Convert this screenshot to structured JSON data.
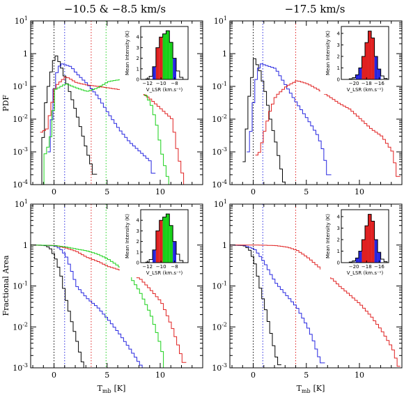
{
  "figure": {
    "col_titles": [
      "−10.5 & −8.5 km/s",
      "−17.5 km/s"
    ],
    "row_ylabels": [
      "PDF",
      "Fractional Area"
    ],
    "xlabel": "T_mb [K]",
    "xlabel_main": "T",
    "xlabel_sub": "mb",
    "xlabel_unit": "[K]",
    "inset_ylabel": "Mean Intensity (K)",
    "inset_xlabel": "V_LSR (km.s⁻¹)",
    "colors": {
      "black": "#000000",
      "blue": "#2626e0",
      "red": "#e02020",
      "green": "#19d119"
    }
  },
  "chart_data": [
    {
      "id": "pdf-left",
      "type": "line",
      "ylabel": "PDF",
      "title": "−10.5 & −8.5 km/s",
      "ylog": true,
      "xlim": [
        -2.2,
        14
      ],
      "ylim": [
        0.0001,
        10
      ],
      "xticks": [
        0,
        5,
        10
      ],
      "yticks": [
        "10^-4",
        "10^-3",
        "10^-2",
        "10^-1",
        "1",
        "10^1"
      ],
      "thresholds": [
        {
          "color": "black",
          "x": 0.0
        },
        {
          "color": "blue",
          "x": 1.0
        },
        {
          "color": "red",
          "x": 3.5
        },
        {
          "color": "green",
          "x": 4.9
        }
      ],
      "series": [
        {
          "color": "black",
          "points": [
            [
              -1.4,
              0.0001
            ],
            [
              -1,
              0.02
            ],
            [
              -0.5,
              0.2
            ],
            [
              0,
              1.0
            ],
            [
              0.5,
              0.45
            ],
            [
              1,
              0.15
            ],
            [
              1.5,
              0.05
            ],
            [
              2,
              0.015
            ],
            [
              2.5,
              0.004
            ],
            [
              3,
              0.001
            ],
            [
              3.5,
              0.0003
            ],
            [
              3.8,
              0.0001
            ]
          ]
        },
        {
          "color": "blue",
          "points": [
            [
              -0.6,
              0.001
            ],
            [
              -0.3,
              0.015
            ],
            [
              0,
              0.2
            ],
            [
              0.5,
              0.5
            ],
            [
              1,
              0.45
            ],
            [
              1.5,
              0.4
            ],
            [
              2,
              0.25
            ],
            [
              3,
              0.12
            ],
            [
              4,
              0.05
            ],
            [
              5,
              0.015
            ],
            [
              6,
              0.005
            ],
            [
              7,
              0.002
            ],
            [
              8,
              0.001
            ],
            [
              9,
              0.0005
            ],
            [
              9.3,
              0.0001
            ]
          ]
        },
        {
          "color": "red",
          "points": [
            [
              -1.3,
              0.004
            ],
            [
              -0.8,
              0.005
            ],
            [
              0,
              0.1
            ],
            [
              1,
              0.2
            ],
            [
              2,
              0.13
            ],
            [
              3,
              0.11
            ],
            [
              4,
              0.1
            ],
            [
              5,
              0.09
            ],
            [
              6,
              0.08
            ],
            [
              7,
              0.08
            ],
            [
              8,
              0.07
            ],
            [
              9,
              0.04
            ],
            [
              10,
              0.02
            ],
            [
              11,
              0.01
            ],
            [
              11.5,
              0.001
            ],
            [
              12.2,
              0.0001
            ]
          ]
        },
        {
          "color": "green",
          "points": [
            [
              -1.2,
              0.0001
            ],
            [
              -1,
              0.0008
            ],
            [
              -0.5,
              0.002
            ],
            [
              0,
              0.08
            ],
            [
              1,
              0.12
            ],
            [
              2,
              0.09
            ],
            [
              3,
              0.07
            ],
            [
              4,
              0.09
            ],
            [
              5,
              0.14
            ],
            [
              6,
              0.16
            ],
            [
              7,
              0.13
            ],
            [
              8,
              0.1
            ],
            [
              9,
              0.03
            ],
            [
              9.5,
              0.008
            ],
            [
              10,
              0.001
            ],
            [
              10.5,
              0.0002
            ],
            [
              10.8,
              0.0001
            ]
          ]
        }
      ]
    },
    {
      "id": "pdf-right",
      "type": "line",
      "ylabel": "",
      "title": "−17.5 km/s",
      "ylog": true,
      "xlim": [
        -2.2,
        14
      ],
      "ylim": [
        0.0001,
        10
      ],
      "xticks": [
        0,
        5,
        10
      ],
      "yticks": [
        "10^-4",
        "10^-3",
        "10^-2",
        "10^-1",
        "1",
        "10^1"
      ],
      "thresholds": [
        {
          "color": "black",
          "x": 0.0
        },
        {
          "color": "blue",
          "x": 0.9
        },
        {
          "color": "red",
          "x": 4.0
        }
      ],
      "series": [
        {
          "color": "black",
          "points": [
            [
              -1,
              0.0005
            ],
            [
              -0.5,
              0.05
            ],
            [
              0,
              0.7
            ],
            [
              0.5,
              0.3
            ],
            [
              1,
              0.07
            ],
            [
              1.5,
              0.01
            ],
            [
              2,
              0.002
            ],
            [
              2.5,
              0.0003
            ],
            [
              2.8,
              0.0001
            ]
          ]
        },
        {
          "color": "blue",
          "points": [
            [
              -0.6,
              0.001
            ],
            [
              -0.2,
              0.01
            ],
            [
              0,
              0.1
            ],
            [
              0.5,
              0.5
            ],
            [
              1,
              0.45
            ],
            [
              2,
              0.35
            ],
            [
              3,
              0.1
            ],
            [
              4,
              0.03
            ],
            [
              5,
              0.01
            ],
            [
              6,
              0.003
            ],
            [
              6.5,
              0.001
            ],
            [
              6.9,
              0.0002
            ],
            [
              7.1,
              0.0001
            ]
          ]
        },
        {
          "color": "red",
          "points": [
            [
              0.2,
              0.0008
            ],
            [
              0.5,
              0.001
            ],
            [
              1,
              0.005
            ],
            [
              1.5,
              0.02
            ],
            [
              2,
              0.05
            ],
            [
              3,
              0.1
            ],
            [
              4,
              0.15
            ],
            [
              5,
              0.12
            ],
            [
              6,
              0.08
            ],
            [
              7,
              0.05
            ],
            [
              8,
              0.03
            ],
            [
              9,
              0.02
            ],
            [
              10,
              0.01
            ],
            [
              11,
              0.005
            ],
            [
              12,
              0.003
            ],
            [
              13,
              0.001
            ],
            [
              13.6,
              0.0001
            ]
          ]
        }
      ]
    },
    {
      "id": "area-left",
      "type": "line",
      "ylabel": "Fractional Area",
      "ylog": true,
      "xlim": [
        -2.2,
        14
      ],
      "ylim": [
        0.001,
        10
      ],
      "xticks": [
        0,
        5,
        10
      ],
      "yticks": [
        "10^-3",
        "10^-2",
        "10^-1",
        "1",
        "10^1"
      ],
      "thresholds": [
        {
          "color": "black",
          "x": 0.0
        },
        {
          "color": "blue",
          "x": 1.0
        },
        {
          "color": "red",
          "x": 3.5
        },
        {
          "color": "green",
          "x": 4.9
        }
      ],
      "series": [
        {
          "color": "black",
          "points": [
            [
              -2.2,
              1
            ],
            [
              -1,
              0.98
            ],
            [
              -0.5,
              0.85
            ],
            [
              0,
              0.5
            ],
            [
              0.5,
              0.2
            ],
            [
              1,
              0.05
            ],
            [
              1.5,
              0.015
            ],
            [
              2,
              0.005
            ],
            [
              2.5,
              0.0015
            ],
            [
              2.8,
              0.001
            ]
          ]
        },
        {
          "color": "blue",
          "points": [
            [
              -2.2,
              1
            ],
            [
              -1,
              0.99
            ],
            [
              0,
              0.95
            ],
            [
              0.5,
              0.8
            ],
            [
              1,
              0.55
            ],
            [
              1.5,
              0.25
            ],
            [
              2,
              0.1
            ],
            [
              3,
              0.05
            ],
            [
              4,
              0.03
            ],
            [
              5,
              0.015
            ],
            [
              6,
              0.007
            ],
            [
              7,
              0.003
            ],
            [
              8,
              0.0012
            ],
            [
              8.3,
              0.001
            ]
          ]
        },
        {
          "color": "red",
          "points": [
            [
              -2.2,
              1
            ],
            [
              -1,
              0.99
            ],
            [
              0,
              0.97
            ],
            [
              1,
              0.85
            ],
            [
              2,
              0.7
            ],
            [
              3,
              0.5
            ],
            [
              4,
              0.4
            ],
            [
              5,
              0.3
            ],
            [
              6,
              0.25
            ],
            [
              7,
              0.2
            ],
            [
              8,
              0.15
            ],
            [
              9,
              0.08
            ],
            [
              10,
              0.04
            ],
            [
              10.5,
              0.02
            ],
            [
              11,
              0.01
            ],
            [
              11.5,
              0.004
            ],
            [
              12,
              0.0015
            ],
            [
              12.2,
              0.001
            ]
          ]
        },
        {
          "color": "green",
          "points": [
            [
              -2.2,
              1
            ],
            [
              -1,
              0.99
            ],
            [
              0,
              0.97
            ],
            [
              1,
              0.9
            ],
            [
              2,
              0.8
            ],
            [
              3,
              0.72
            ],
            [
              4,
              0.6
            ],
            [
              5,
              0.45
            ],
            [
              6,
              0.3
            ],
            [
              7,
              0.18
            ],
            [
              8,
              0.07
            ],
            [
              9,
              0.02
            ],
            [
              9.5,
              0.008
            ],
            [
              10,
              0.003
            ],
            [
              10.3,
              0.001
            ]
          ]
        }
      ]
    },
    {
      "id": "area-right",
      "type": "line",
      "ylabel": "",
      "ylog": true,
      "xlim": [
        -2.2,
        14
      ],
      "ylim": [
        0.001,
        10
      ],
      "xticks": [
        0,
        5,
        10
      ],
      "yticks": [
        "10^-3",
        "10^-2",
        "10^-1",
        "1",
        "10^1"
      ],
      "thresholds": [
        {
          "color": "black",
          "x": 0.0
        },
        {
          "color": "blue",
          "x": 0.9
        },
        {
          "color": "red",
          "x": 4.0
        }
      ],
      "series": [
        {
          "color": "black",
          "points": [
            [
              -2.2,
              1
            ],
            [
              -1,
              0.97
            ],
            [
              -0.5,
              0.8
            ],
            [
              0,
              0.4
            ],
            [
              0.5,
              0.1
            ],
            [
              1,
              0.03
            ],
            [
              1.5,
              0.008
            ],
            [
              2,
              0.002
            ],
            [
              2.4,
              0.001
            ]
          ]
        },
        {
          "color": "blue",
          "points": [
            [
              -2.2,
              1
            ],
            [
              -1,
              0.99
            ],
            [
              0,
              0.8
            ],
            [
              0.5,
              0.55
            ],
            [
              1,
              0.35
            ],
            [
              1.5,
              0.2
            ],
            [
              2,
              0.12
            ],
            [
              3,
              0.06
            ],
            [
              4,
              0.03
            ],
            [
              5,
              0.01
            ],
            [
              5.5,
              0.005
            ],
            [
              6,
              0.002
            ],
            [
              6.5,
              0.001
            ]
          ]
        },
        {
          "color": "red",
          "points": [
            [
              -2.2,
              1
            ],
            [
              0,
              1
            ],
            [
              1,
              0.99
            ],
            [
              2,
              0.97
            ],
            [
              3,
              0.9
            ],
            [
              4,
              0.75
            ],
            [
              5,
              0.5
            ],
            [
              6,
              0.3
            ],
            [
              7,
              0.18
            ],
            [
              8,
              0.1
            ],
            [
              9,
              0.06
            ],
            [
              10,
              0.035
            ],
            [
              11,
              0.018
            ],
            [
              12,
              0.008
            ],
            [
              13,
              0.003
            ],
            [
              13.6,
              0.001
            ]
          ]
        }
      ]
    }
  ],
  "insets": [
    {
      "id": "inset-left",
      "xlim": [
        -13,
        -6
      ],
      "ylim": [
        0,
        5
      ],
      "xticks": [
        -12,
        -10,
        -8
      ],
      "yticks": [
        0,
        1,
        2,
        3,
        4
      ],
      "bars": [
        {
          "x": -12,
          "v": 0.05,
          "c": "none"
        },
        {
          "x": -11.5,
          "v": 0.3,
          "c": "none"
        },
        {
          "x": -11,
          "v": 1.2,
          "c": "blue"
        },
        {
          "x": -10.5,
          "v": 3.0,
          "c": "red"
        },
        {
          "x": -10,
          "v": 4.0,
          "c": "red"
        },
        {
          "x": -9.5,
          "v": 4.3,
          "c": "green"
        },
        {
          "x": -9,
          "v": 4.6,
          "c": "green"
        },
        {
          "x": -8.5,
          "v": 3.5,
          "c": "green"
        },
        {
          "x": -8,
          "v": 2.0,
          "c": "blue"
        },
        {
          "x": -7.5,
          "v": 0.8,
          "c": "none"
        },
        {
          "x": -7,
          "v": 0.2,
          "c": "none"
        }
      ]
    },
    {
      "id": "inset-right",
      "xlim": [
        -22,
        -14.5
      ],
      "ylim": [
        0,
        4.6
      ],
      "xticks": [
        -20,
        -18,
        -16
      ],
      "yticks": [
        0,
        1,
        2,
        3,
        4
      ],
      "bars": [
        {
          "x": -20.5,
          "v": 0.05,
          "c": "none"
        },
        {
          "x": -20,
          "v": 0.15,
          "c": "none"
        },
        {
          "x": -19.5,
          "v": 0.4,
          "c": "blue"
        },
        {
          "x": -19,
          "v": 1.0,
          "c": "blue"
        },
        {
          "x": -18.5,
          "v": 2.0,
          "c": "red"
        },
        {
          "x": -18,
          "v": 3.2,
          "c": "red"
        },
        {
          "x": -17.5,
          "v": 4.2,
          "c": "red"
        },
        {
          "x": -17,
          "v": 3.6,
          "c": "red"
        },
        {
          "x": -16.5,
          "v": 2.0,
          "c": "blue"
        },
        {
          "x": -16,
          "v": 0.9,
          "c": "blue"
        },
        {
          "x": -15.5,
          "v": 0.3,
          "c": "none"
        },
        {
          "x": -15,
          "v": 0.08,
          "c": "none"
        }
      ]
    }
  ]
}
